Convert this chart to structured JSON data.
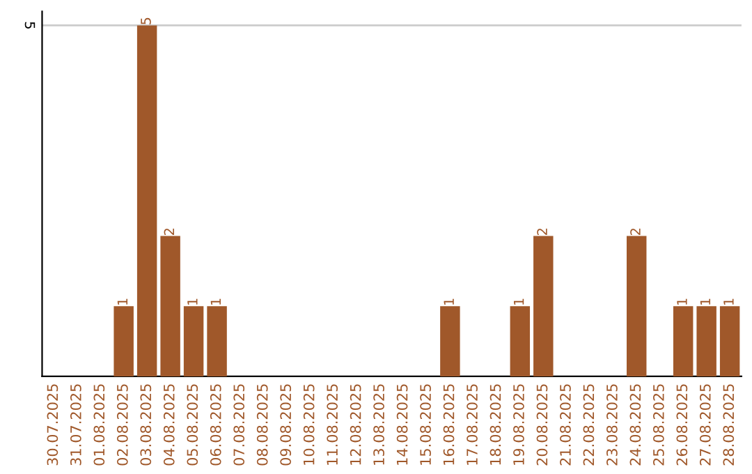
{
  "chart_data": {
    "type": "bar",
    "categories": [
      "30.07.2025",
      "31.07.2025",
      "01.08.2025",
      "02.08.2025",
      "03.08.2025",
      "04.08.2025",
      "05.08.2025",
      "06.08.2025",
      "07.08.2025",
      "08.08.2025",
      "09.08.2025",
      "10.08.2025",
      "11.08.2025",
      "12.08.2025",
      "13.08.2025",
      "14.08.2025",
      "15.08.2025",
      "16.08.2025",
      "17.08.2025",
      "18.08.2025",
      "19.08.2025",
      "20.08.2025",
      "21.08.2025",
      "22.08.2025",
      "23.08.2025",
      "24.08.2025",
      "25.08.2025",
      "26.08.2025",
      "27.08.2025",
      "28.08.2025"
    ],
    "values": [
      0,
      0,
      0,
      1,
      5,
      2,
      1,
      1,
      0,
      0,
      0,
      0,
      0,
      0,
      0,
      0,
      0,
      1,
      0,
      0,
      1,
      2,
      0,
      0,
      0,
      2,
      0,
      1,
      1,
      1
    ],
    "value_labels": [
      null,
      null,
      null,
      "1",
      "5",
      "2",
      "1",
      "1",
      null,
      null,
      null,
      null,
      null,
      null,
      null,
      null,
      null,
      "1",
      null,
      null,
      "1",
      "2",
      null,
      null,
      null,
      "2",
      null,
      "1",
      "1",
      "1"
    ],
    "color": "#a0582a",
    "ylim": [
      0,
      5.2
    ],
    "yticks": [
      5
    ],
    "grid": "y",
    "legend": false
  }
}
